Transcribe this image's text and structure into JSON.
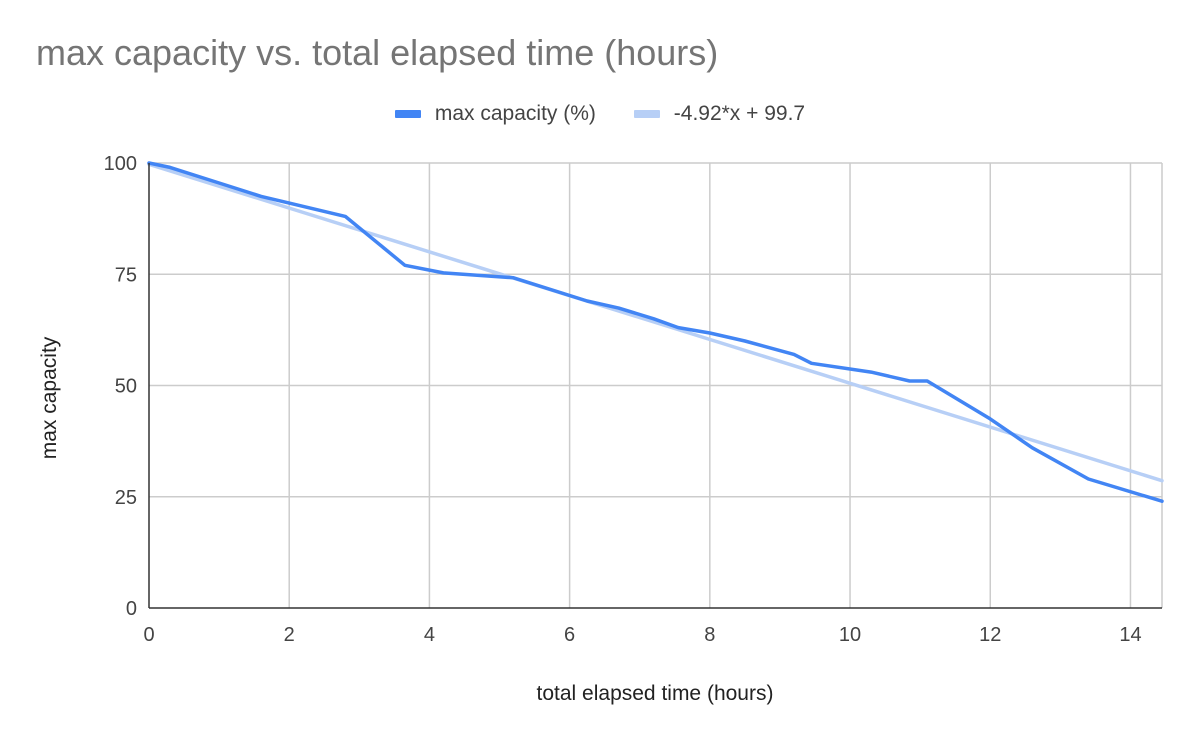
{
  "chart_data": {
    "type": "line",
    "title": "max capacity vs. total elapsed time (hours)",
    "xlabel": "total elapsed time (hours)",
    "ylabel": "max capacity",
    "xlim": [
      0,
      14.45
    ],
    "ylim": [
      0,
      100
    ],
    "x_ticks": [
      0,
      2,
      4,
      6,
      8,
      10,
      12,
      14
    ],
    "y_ticks": [
      0,
      25,
      50,
      75,
      100
    ],
    "grid": true,
    "legend_position": "top-center",
    "series": [
      {
        "name": "max capacity (%)",
        "color": "#4285f4",
        "points": [
          [
            0,
            100
          ],
          [
            0.3,
            99
          ],
          [
            1.0,
            95.5
          ],
          [
            1.6,
            92.5
          ],
          [
            2.0,
            91
          ],
          [
            2.8,
            88
          ],
          [
            3.65,
            77
          ],
          [
            4.2,
            75.3
          ],
          [
            5.2,
            74.2
          ],
          [
            6.25,
            69
          ],
          [
            6.7,
            67.4
          ],
          [
            7.2,
            65
          ],
          [
            7.55,
            63
          ],
          [
            8.0,
            61.8
          ],
          [
            8.5,
            60
          ],
          [
            9.2,
            57
          ],
          [
            9.45,
            55
          ],
          [
            10.3,
            53
          ],
          [
            10.85,
            51
          ],
          [
            11.1,
            51
          ],
          [
            12.0,
            42.5
          ],
          [
            12.6,
            36
          ],
          [
            13.4,
            29
          ],
          [
            14.45,
            24
          ]
        ]
      },
      {
        "name": "-4.92*x + 99.7",
        "color": "#b7cff6",
        "trendline": {
          "slope": -4.92,
          "intercept": 99.7
        },
        "points": [
          [
            0,
            99.7
          ],
          [
            14.45,
            28.6
          ]
        ]
      }
    ]
  }
}
